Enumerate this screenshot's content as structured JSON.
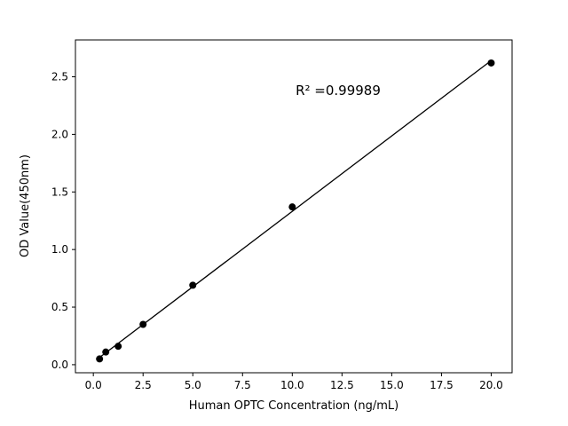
{
  "chart_data": {
    "type": "scatter",
    "title": "",
    "xlabel": "Human OPTC Concentration (ng/mL)",
    "ylabel": "OD Value(450nm)",
    "annotation": {
      "text": "R² =0.99989"
    },
    "x": [
      0.3125,
      0.625,
      1.25,
      2.5,
      5,
      10,
      20
    ],
    "y": [
      0.05,
      0.11,
      0.16,
      0.35,
      0.69,
      1.37,
      2.62
    ],
    "xticks": [
      0,
      2.5,
      5,
      7.5,
      10,
      12.5,
      15,
      17.5,
      20
    ],
    "yticks": [
      0,
      0.5,
      1,
      1.5,
      2,
      2.5
    ],
    "xlim": [
      -0.9,
      21.05
    ],
    "ylim": [
      -0.07,
      2.82
    ],
    "grid": false,
    "legend": null,
    "line_color": "#000000",
    "marker_color": "#000000",
    "background": "#ffffff"
  }
}
